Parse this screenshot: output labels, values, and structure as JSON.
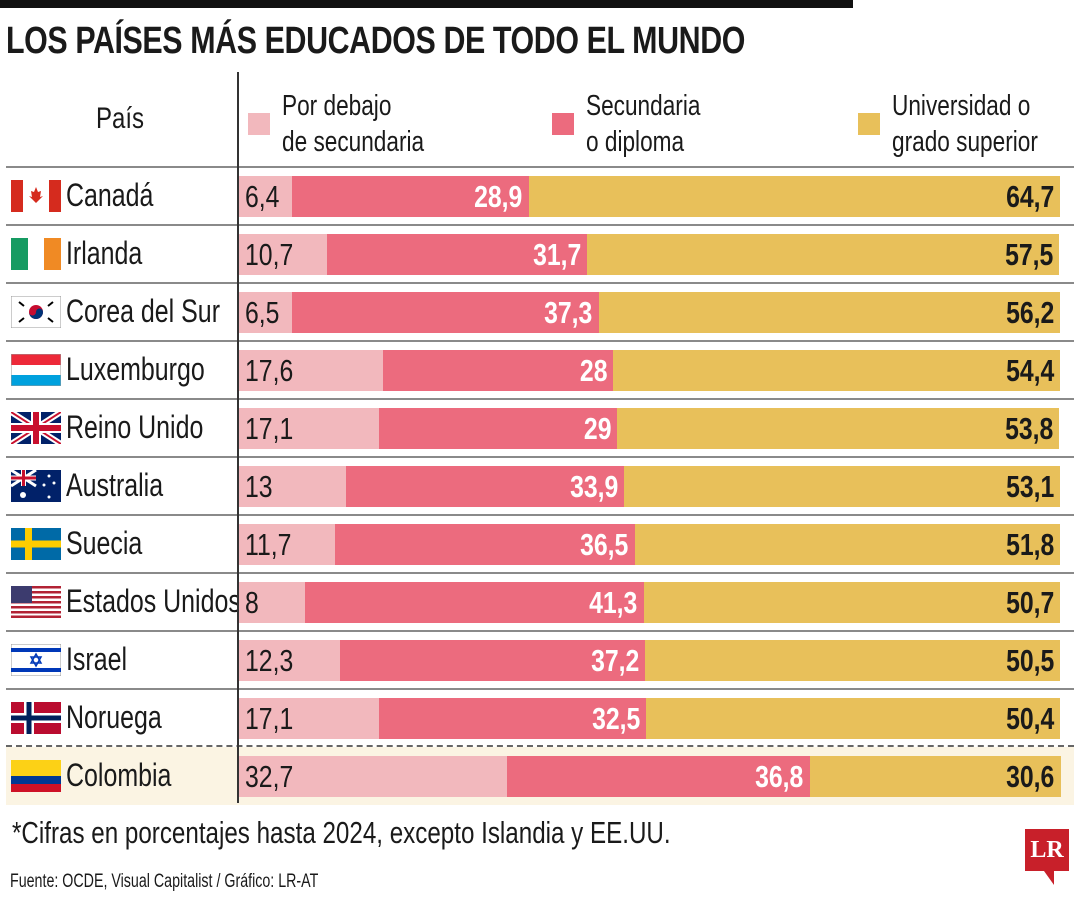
{
  "title": "LOS PAÍSES MÁS EDUCADOS DE TODO EL MUNDO",
  "header_country": "País",
  "note": "*Cifras en porcentajes hasta 2024, excepto Islandia y EE.UU.",
  "source": "Fuente: OCDE, Visual Capitalist / Gráfico: LR-AT",
  "logo": "LR",
  "chart_data": {
    "type": "bar",
    "orientation": "horizontal",
    "stacked": true,
    "unit": "%",
    "xlim": [
      0,
      100
    ],
    "legend_position": "top",
    "categories": [
      "Canadá",
      "Irlanda",
      "Corea del Sur",
      "Luxemburgo",
      "Reino Unido",
      "Australia",
      "Suecia",
      "Estados Unidos",
      "Israel",
      "Noruega",
      "Colombia"
    ],
    "series": [
      {
        "name": "Por debajo\nde secundaria",
        "color": "#f2b8bd",
        "values": [
          "6,4",
          "10,7",
          "6,5",
          "17,6",
          "17,1",
          "13",
          "11,7",
          "8",
          "12,3",
          "17,1",
          "32,7"
        ]
      },
      {
        "name": "Secundaria\no diploma",
        "color": "#ec6b7e",
        "values": [
          "28,9",
          "31,7",
          "37,3",
          "28",
          "29",
          "33,9",
          "36,5",
          "41,3",
          "37,2",
          "32,5",
          "36,8"
        ]
      },
      {
        "name": "Universidad o\ngrado superior",
        "color": "#e8c05a",
        "values": [
          "64,7",
          "57,5",
          "56,2",
          "54,4",
          "53,8",
          "53,1",
          "51,8",
          "50,7",
          "50,5",
          "50,4",
          "30,6"
        ]
      }
    ],
    "flags": [
      "canada",
      "ireland",
      "south-korea",
      "luxembourg",
      "united-kingdom",
      "australia",
      "sweden",
      "united-states",
      "israel",
      "norway",
      "colombia"
    ],
    "highlight": "Colombia",
    "highlight_color": "#fbf4e3"
  }
}
